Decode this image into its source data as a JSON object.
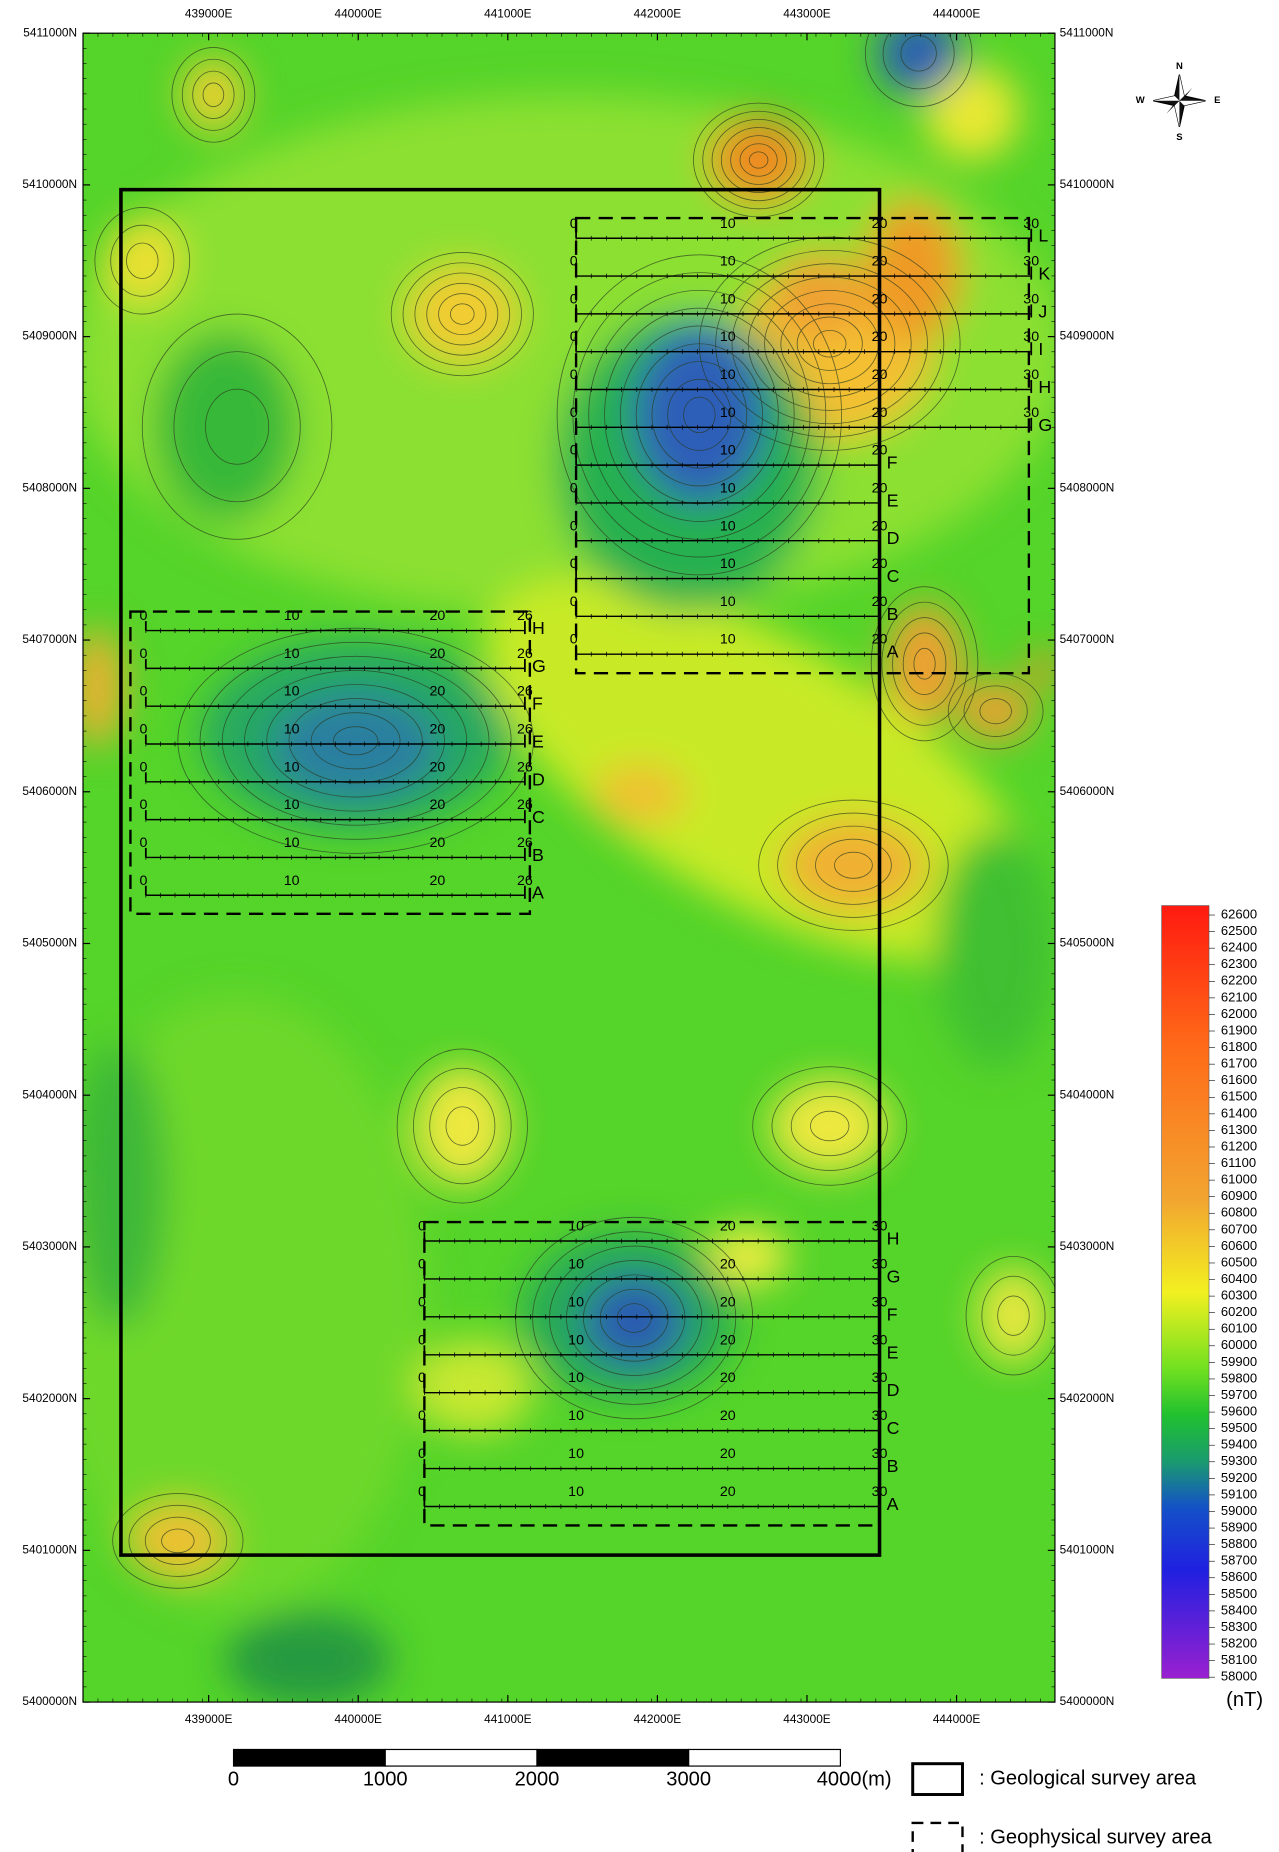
{
  "map": {
    "easting_labels": [
      "439000E",
      "440000E",
      "441000E",
      "442000E",
      "443000E",
      "444000E"
    ],
    "northing_labels": [
      "5411000N",
      "5410000N",
      "5409000N",
      "5408000N",
      "5407000N",
      "5406000N",
      "5405000N",
      "5404000N",
      "5403000N",
      "5402000N",
      "5401000N",
      "5400000N"
    ]
  },
  "compass": {
    "n": "N",
    "s": "S",
    "e": "E",
    "w": "W"
  },
  "colorbar": {
    "labels": [
      62600,
      62500,
      62400,
      62300,
      62200,
      62100,
      62000,
      61900,
      61800,
      61700,
      61600,
      61500,
      61400,
      61300,
      61200,
      61100,
      61000,
      60900,
      60800,
      60700,
      60600,
      60500,
      60400,
      60300,
      60200,
      60100,
      60000,
      59900,
      59800,
      59700,
      59600,
      59500,
      59400,
      59300,
      59200,
      59100,
      59000,
      58900,
      58800,
      58700,
      58600,
      58500,
      58400,
      58300,
      58200,
      58100,
      58000
    ],
    "unit": "(nT)"
  },
  "scalebar": {
    "labels": [
      "0",
      "1000",
      "2000",
      "3000",
      "4000(m)"
    ]
  },
  "legend": {
    "geological": ": Geological survey area",
    "geophysical": ": Geophysical survey area"
  },
  "survey_grids": [
    {
      "lines": [
        {
          "name": "L",
          "stations": [
            0,
            10,
            20,
            30
          ]
        },
        {
          "name": "K",
          "stations": [
            0,
            10,
            20,
            30
          ]
        },
        {
          "name": "J",
          "stations": [
            0,
            10,
            20,
            30
          ]
        },
        {
          "name": "I",
          "stations": [
            0,
            10,
            20,
            30
          ]
        },
        {
          "name": "H",
          "stations": [
            0,
            10,
            20,
            30
          ]
        },
        {
          "name": "G",
          "stations": [
            0,
            10,
            20,
            30
          ]
        },
        {
          "name": "F",
          "stations": [
            0,
            10,
            20
          ]
        },
        {
          "name": "E",
          "stations": [
            0,
            10,
            20
          ]
        },
        {
          "name": "D",
          "stations": [
            0,
            10,
            20
          ]
        },
        {
          "name": "C",
          "stations": [
            0,
            10,
            20
          ]
        },
        {
          "name": "B",
          "stations": [
            0,
            10,
            20
          ]
        },
        {
          "name": "A",
          "stations": [
            0,
            10,
            20
          ]
        }
      ]
    },
    {
      "lines": [
        {
          "name": "H",
          "stations": [
            0,
            10,
            20,
            26
          ]
        },
        {
          "name": "G",
          "stations": [
            0,
            10,
            20,
            26
          ]
        },
        {
          "name": "F",
          "stations": [
            0,
            10,
            20,
            26
          ]
        },
        {
          "name": "E",
          "stations": [
            0,
            10,
            20,
            26
          ]
        },
        {
          "name": "D",
          "stations": [
            0,
            10,
            20,
            26
          ]
        },
        {
          "name": "C",
          "stations": [
            0,
            10,
            20,
            26
          ]
        },
        {
          "name": "B",
          "stations": [
            0,
            10,
            20,
            26
          ]
        },
        {
          "name": "A",
          "stations": [
            0,
            10,
            20,
            26
          ]
        }
      ]
    },
    {
      "lines": [
        {
          "name": "H",
          "stations": [
            0,
            10,
            20,
            30
          ]
        },
        {
          "name": "G",
          "stations": [
            0,
            10,
            20,
            30
          ]
        },
        {
          "name": "F",
          "stations": [
            0,
            10,
            20,
            30
          ]
        },
        {
          "name": "E",
          "stations": [
            0,
            10,
            20,
            30
          ]
        },
        {
          "name": "D",
          "stations": [
            0,
            10,
            20,
            30
          ]
        },
        {
          "name": "C",
          "stations": [
            0,
            10,
            20,
            30
          ]
        },
        {
          "name": "B",
          "stations": [
            0,
            10,
            20,
            30
          ]
        },
        {
          "name": "A",
          "stations": [
            0,
            10,
            20,
            30
          ]
        }
      ]
    }
  ]
}
